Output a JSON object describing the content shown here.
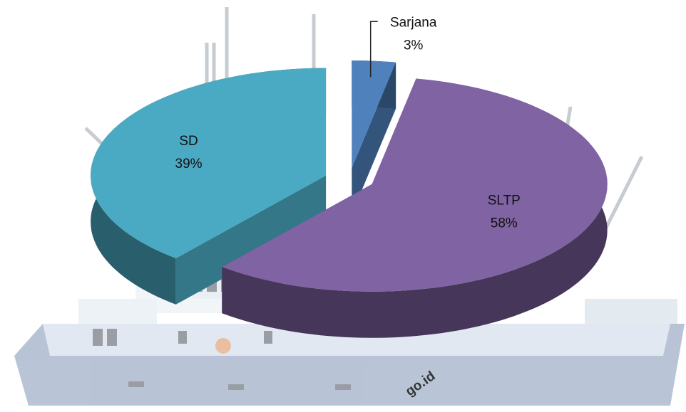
{
  "chart_data": {
    "type": "pie",
    "categories": [
      "Sarjana",
      "SLTP",
      "SD"
    ],
    "values": [
      3,
      58,
      39
    ],
    "value_labels": [
      "3%",
      "58%",
      "39%"
    ],
    "colors": [
      "#4f81bd",
      "#7f63a3",
      "#4aaac4"
    ],
    "watermark": "go.id"
  }
}
